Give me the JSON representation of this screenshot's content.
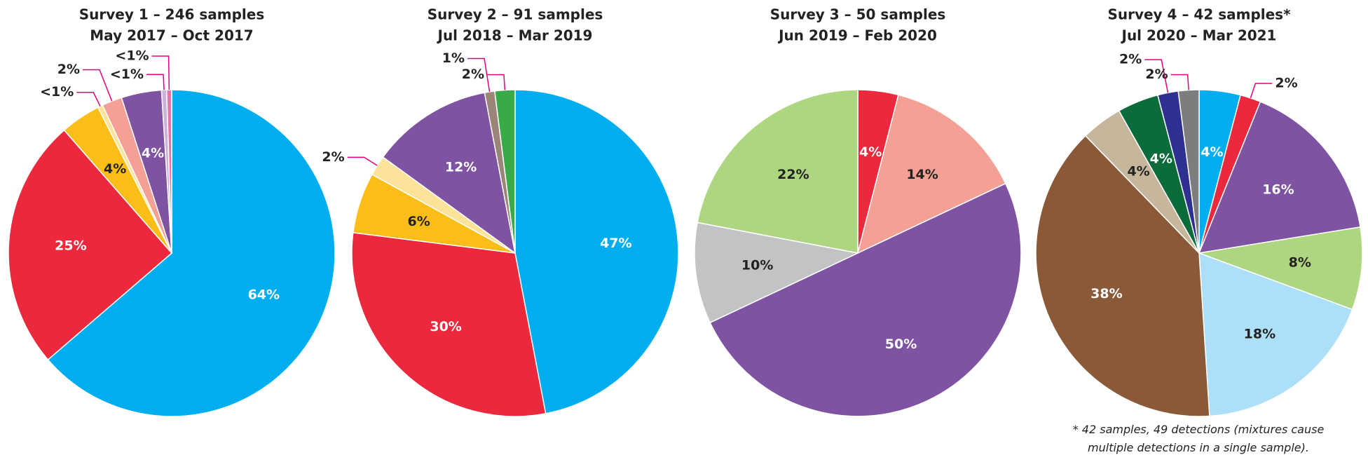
{
  "chart_data": [
    {
      "type": "pie",
      "title": "Survey 1 – 246 samples",
      "subtitle": "May 2017 – Oct 2017",
      "values": [
        64,
        25,
        4,
        0.5,
        2,
        4,
        0.5,
        0.5
      ],
      "value_labels": [
        "64%",
        "25%",
        "4%",
        "<1%",
        "2%",
        "4%",
        "<1%",
        "<1%"
      ],
      "colors": [
        "#00aeef",
        "#ec283c",
        "#fbbd18",
        "#fde39a",
        "#f4a094",
        "#7e53a2",
        "#c9b3dc",
        "#f06fa8"
      ]
    },
    {
      "type": "pie",
      "title": "Survey 2 – 91 samples",
      "subtitle": "Jul 2018 – Mar 2019",
      "values": [
        47,
        30,
        6,
        2,
        12,
        1,
        2
      ],
      "value_labels": [
        "47%",
        "30%",
        "6%",
        "2%",
        "12%",
        "1%",
        "2%"
      ],
      "colors": [
        "#00aeef",
        "#ec283c",
        "#fbbd18",
        "#fde39a",
        "#7e53a2",
        "#9b8579",
        "#3aaa49"
      ]
    },
    {
      "type": "pie",
      "title": "Survey 3 – 50 samples",
      "subtitle": "Jun 2019 – Feb 2020",
      "values": [
        4,
        14,
        50,
        10,
        22
      ],
      "value_labels": [
        "4%",
        "14%",
        "50%",
        "10%",
        "22%"
      ],
      "colors": [
        "#ec283c",
        "#f4a094",
        "#7e53a2",
        "#c2c3c5",
        "#aed57f"
      ]
    },
    {
      "type": "pie",
      "title": "Survey 4 – 42 samples*",
      "subtitle": "Jul 2020 – Mar 2021",
      "values": [
        4,
        2,
        16,
        8,
        18,
        38,
        4,
        4,
        2,
        2
      ],
      "value_labels": [
        "4%",
        "2%",
        "16%",
        "8%",
        "18%",
        "38%",
        "4%",
        "4%",
        "2%",
        "2%"
      ],
      "colors": [
        "#00aeef",
        "#ec283c",
        "#7e53a2",
        "#aed57f",
        "#ade0f8",
        "#8a5a38",
        "#c6b69b",
        "#0b6b3a",
        "#2e3192",
        "#7d7d80"
      ],
      "note": "* 42 samples, 49 detections (mixtures cause multiple detections in a single sample)."
    }
  ]
}
